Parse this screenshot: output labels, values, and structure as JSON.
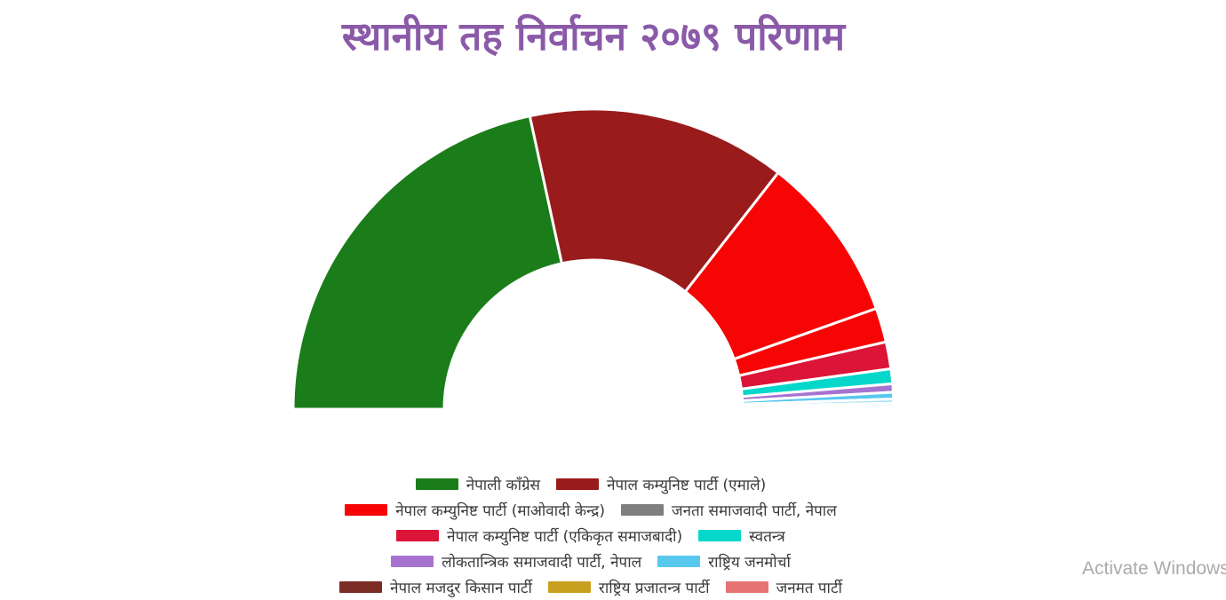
{
  "title": "स्थानीय तह निर्वाचन २०७९ परिणाम",
  "title_color": "#8a5aa8",
  "watermark": "Activate Windows",
  "chart_data": {
    "type": "pie",
    "subtype": "half-donut",
    "title": "स्थानीय तह निर्वाचन २०७९ परिणाम",
    "legend_position": "bottom-center",
    "total_angle_deg": 180,
    "inner_radius_ratio": 0.5,
    "grid": false,
    "slices": [
      {
        "label": "नेपाली काँग्रेस",
        "color": "#1a7d1a",
        "pct": 43.2
      },
      {
        "label": "नेपाल कम्युनिष्ट पार्टी (एमाले)",
        "color": "#9a1b1b",
        "pct": 27.9
      },
      {
        "label": "नेपाल कम्युनिष्ट पार्टी (माओवादी केन्द्र)",
        "color": "#f70505",
        "pct": 18.0
      },
      {
        "label": "जनता समाजवादी पार्टी, नेपाल",
        "color": "#f70505",
        "pct": 3.7
      },
      {
        "label": "नेपाल कम्युनिष्ट पार्टी (एकिकृत समाजबादी)",
        "color": "#dc1437",
        "pct": 2.9
      },
      {
        "label": "स्वतन्त्र",
        "color": "#05d8ca",
        "pct": 1.6
      },
      {
        "label": "लोकतान्त्रिक समाजवादी पार्टी, नेपाल",
        "color": "#a673d1",
        "pct": 0.9
      },
      {
        "label": "राष्ट्रिय जनमोर्चा",
        "color": "#58c8ee",
        "pct": 0.72
      },
      {
        "label": "नेपाल मजदुर किसान पार्टी",
        "color": "#a5e0f6",
        "pct": 0.44
      },
      {
        "label": "राष्ट्रिय प्रजातन्त्र पार्टी",
        "color": "#d9f1fb",
        "pct": 0.33
      },
      {
        "label": "जनमत पार्टी",
        "color": "#bfbfbf",
        "pct": 0.22
      }
    ]
  },
  "legend": {
    "rows": [
      [
        {
          "label": "नेपाली काँग्रेस",
          "color": "#1a7d1a"
        },
        {
          "label": "नेपाल कम्युनिष्ट पार्टी (एमाले)",
          "color": "#9a1b1b"
        }
      ],
      [
        {
          "label": "नेपाल कम्युनिष्ट पार्टी (माओवादी केन्द्र)",
          "color": "#f70505"
        },
        {
          "label": "जनता समाजवादी पार्टी, नेपाल",
          "color": "#7f7f7f"
        }
      ],
      [
        {
          "label": "नेपाल कम्युनिष्ट पार्टी (एकिकृत समाजबादी)",
          "color": "#dc1437"
        },
        {
          "label": "स्वतन्त्र",
          "color": "#05d8ca"
        }
      ],
      [
        {
          "label": "लोकतान्त्रिक समाजवादी पार्टी, नेपाल",
          "color": "#a673d1"
        },
        {
          "label": "राष्ट्रिय जनमोर्चा",
          "color": "#58c8ee"
        }
      ],
      [
        {
          "label": "नेपाल मजदुर किसान पार्टी",
          "color": "#7b2d26"
        },
        {
          "label": "राष्ट्रिय प्रजातन्त्र पार्टी",
          "color": "#c8a020"
        },
        {
          "label": "जनमत पार्टी",
          "color": "#e57373"
        }
      ]
    ]
  }
}
